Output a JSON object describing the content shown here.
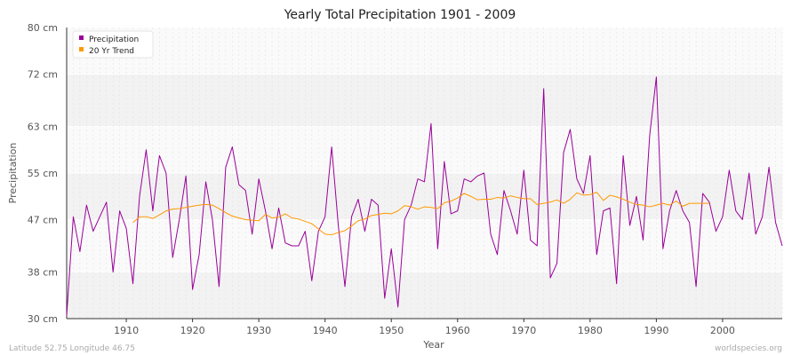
{
  "chart_data": {
    "type": "line",
    "title": "Yearly Total Precipitation 1901 - 2009",
    "xlabel": "Year",
    "ylabel": "Precipitation",
    "xlim": [
      1901,
      2009
    ],
    "ylim": [
      30,
      80
    ],
    "y_ticks": [
      30,
      38,
      47,
      55,
      63,
      72,
      80
    ],
    "y_tick_labels": [
      "30 cm",
      "38 cm",
      "47 cm",
      "55 cm",
      "63 cm",
      "72 cm",
      "80 cm"
    ],
    "x_ticks": [
      1910,
      1920,
      1930,
      1940,
      1950,
      1960,
      1970,
      1980,
      1990,
      2000
    ],
    "x_tick_labels": [
      "1910",
      "1920",
      "1930",
      "1940",
      "1950",
      "1960",
      "1970",
      "1980",
      "1990",
      "2000"
    ],
    "grid": true,
    "legend_position": "top-left",
    "series": [
      {
        "name": "Precipitation",
        "color": "#990099",
        "x_start": 1901,
        "values": [
          30.5,
          47.5,
          41.5,
          49.5,
          45.0,
          47.5,
          50.0,
          38.0,
          48.5,
          45.5,
          36.0,
          51.0,
          59.0,
          48.5,
          58.0,
          55.0,
          40.5,
          47.0,
          54.5,
          35.0,
          41.0,
          53.5,
          47.0,
          35.5,
          56.0,
          59.5,
          53.0,
          52.0,
          44.5,
          54.0,
          48.5,
          42.0,
          49.0,
          43.0,
          42.5,
          42.5,
          45.0,
          36.5,
          45.0,
          47.5,
          59.5,
          46.0,
          35.5,
          47.5,
          50.5,
          45.0,
          50.5,
          49.5,
          33.5,
          42.0,
          32.0,
          47.0,
          49.5,
          54.0,
          53.5,
          63.5,
          42.0,
          57.0,
          48.0,
          48.5,
          54.0,
          53.5,
          54.5,
          55.0,
          44.5,
          41.0,
          52.0,
          48.5,
          44.5,
          55.5,
          43.5,
          42.5,
          69.5,
          37.0,
          39.5,
          58.5,
          62.5,
          54.0,
          51.5,
          58.0,
          41.0,
          48.5,
          49.0,
          36.0,
          58.0,
          46.0,
          51.0,
          43.5,
          61.5,
          71.5,
          42.0,
          48.5,
          52.0,
          48.5,
          46.5,
          35.5,
          51.5,
          50.0,
          45.0,
          47.5,
          55.5,
          48.5,
          47.0,
          55.0,
          44.5,
          47.5,
          56.0,
          46.5,
          42.5
        ]
      },
      {
        "name": "20 Yr Trend",
        "color": "#ff9900",
        "x_start": 1911,
        "values": [
          46.5,
          47.5,
          47.5,
          47.2,
          47.8,
          48.5,
          48.8,
          48.9,
          49.1,
          49.3,
          49.5,
          49.6,
          49.5,
          48.9,
          48.2,
          47.6,
          47.3,
          47.0,
          46.9,
          46.8,
          47.9,
          47.3,
          47.4,
          48.0,
          47.3,
          47.1,
          46.7,
          46.3,
          45.4,
          44.5,
          44.4,
          44.8,
          45.1,
          45.9,
          46.8,
          47.1,
          47.7,
          47.9,
          48.1,
          48.0,
          48.5,
          49.4,
          49.2,
          48.8,
          49.2,
          49.1,
          48.9,
          49.9,
          50.2,
          50.7,
          51.5,
          51.0,
          50.4,
          50.5,
          50.5,
          50.8,
          50.7,
          51.1,
          50.8,
          50.6,
          50.6,
          49.6,
          49.8,
          50.0,
          50.4,
          49.8,
          50.5,
          51.6,
          51.2,
          51.3,
          51.7,
          50.3,
          51.2,
          50.9,
          50.5,
          50.0,
          49.6,
          49.5,
          49.2,
          49.5,
          49.8,
          49.5,
          50.2,
          49.3,
          49.8,
          49.8,
          49.8,
          49.8
        ]
      }
    ]
  },
  "footer": {
    "location": "Latitude 52.75 Longitude 46.75",
    "source": "worldspecies.org"
  }
}
